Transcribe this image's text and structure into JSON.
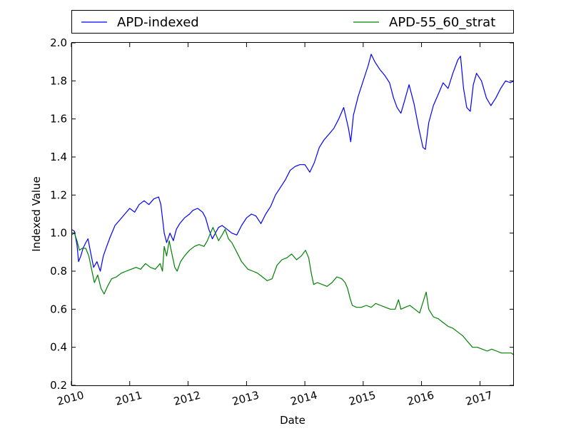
{
  "chart_data": {
    "type": "line",
    "title": "",
    "xlabel": "Date",
    "ylabel": "Indexed Value",
    "x_range": [
      "2010-01-01",
      "2017-08-01"
    ],
    "ylim": [
      0.2,
      2.0
    ],
    "x_ticks": [
      "2010",
      "2011",
      "2012",
      "2013",
      "2014",
      "2015",
      "2016",
      "2017"
    ],
    "y_ticks": [
      "0.2",
      "0.4",
      "0.6",
      "0.8",
      "1.0",
      "1.2",
      "1.4",
      "1.6",
      "1.8",
      "2.0"
    ],
    "grid": false,
    "legend_position": "top",
    "series": [
      {
        "name": "APD-indexed",
        "color": "#0000ff",
        "points": [
          [
            "2010-01-01",
            1.02
          ],
          [
            "2010-01-20",
            1.01
          ],
          [
            "2010-02-05",
            0.94
          ],
          [
            "2010-02-15",
            0.85
          ],
          [
            "2010-03-01",
            0.88
          ],
          [
            "2010-03-15",
            0.92
          ],
          [
            "2010-04-01",
            0.95
          ],
          [
            "2010-04-15",
            0.97
          ],
          [
            "2010-05-01",
            0.9
          ],
          [
            "2010-05-20",
            0.82
          ],
          [
            "2010-06-10",
            0.85
          ],
          [
            "2010-07-01",
            0.8
          ],
          [
            "2010-07-20",
            0.88
          ],
          [
            "2010-08-10",
            0.93
          ],
          [
            "2010-09-01",
            0.98
          ],
          [
            "2010-10-01",
            1.04
          ],
          [
            "2010-11-01",
            1.07
          ],
          [
            "2010-12-01",
            1.1
          ],
          [
            "2011-01-01",
            1.13
          ],
          [
            "2011-02-01",
            1.11
          ],
          [
            "2011-03-01",
            1.15
          ],
          [
            "2011-04-01",
            1.17
          ],
          [
            "2011-05-01",
            1.15
          ],
          [
            "2011-06-01",
            1.18
          ],
          [
            "2011-07-01",
            1.19
          ],
          [
            "2011-07-15",
            1.15
          ],
          [
            "2011-08-05",
            1.0
          ],
          [
            "2011-08-20",
            0.95
          ],
          [
            "2011-09-10",
            1.0
          ],
          [
            "2011-10-01",
            0.96
          ],
          [
            "2011-10-20",
            1.02
          ],
          [
            "2011-11-10",
            1.05
          ],
          [
            "2011-12-10",
            1.08
          ],
          [
            "2012-01-10",
            1.1
          ],
          [
            "2012-02-01",
            1.12
          ],
          [
            "2012-03-01",
            1.13
          ],
          [
            "2012-04-01",
            1.11
          ],
          [
            "2012-04-20",
            1.08
          ],
          [
            "2012-05-10",
            1.02
          ],
          [
            "2012-06-01",
            0.97
          ],
          [
            "2012-06-20",
            1.0
          ],
          [
            "2012-07-10",
            1.03
          ],
          [
            "2012-08-01",
            1.04
          ],
          [
            "2012-09-01",
            1.02
          ],
          [
            "2012-10-01",
            1.0
          ],
          [
            "2012-11-01",
            0.99
          ],
          [
            "2012-12-01",
            1.04
          ],
          [
            "2013-01-01",
            1.08
          ],
          [
            "2013-02-01",
            1.1
          ],
          [
            "2013-03-01",
            1.09
          ],
          [
            "2013-04-01",
            1.05
          ],
          [
            "2013-05-01",
            1.1
          ],
          [
            "2013-06-01",
            1.14
          ],
          [
            "2013-07-01",
            1.2
          ],
          [
            "2013-08-01",
            1.24
          ],
          [
            "2013-09-01",
            1.28
          ],
          [
            "2013-10-01",
            1.33
          ],
          [
            "2013-11-01",
            1.35
          ],
          [
            "2013-12-01",
            1.36
          ],
          [
            "2014-01-01",
            1.36
          ],
          [
            "2014-02-01",
            1.32
          ],
          [
            "2014-03-01",
            1.37
          ],
          [
            "2014-04-01",
            1.45
          ],
          [
            "2014-05-01",
            1.49
          ],
          [
            "2014-06-01",
            1.52
          ],
          [
            "2014-07-01",
            1.55
          ],
          [
            "2014-08-01",
            1.6
          ],
          [
            "2014-09-01",
            1.66
          ],
          [
            "2014-10-01",
            1.55
          ],
          [
            "2014-10-15",
            1.48
          ],
          [
            "2014-11-01",
            1.62
          ],
          [
            "2014-12-01",
            1.72
          ],
          [
            "2015-01-01",
            1.8
          ],
          [
            "2015-02-01",
            1.88
          ],
          [
            "2015-02-20",
            1.94
          ],
          [
            "2015-03-15",
            1.9
          ],
          [
            "2015-04-15",
            1.86
          ],
          [
            "2015-05-15",
            1.83
          ],
          [
            "2015-06-15",
            1.79
          ],
          [
            "2015-07-10",
            1.71
          ],
          [
            "2015-08-01",
            1.66
          ],
          [
            "2015-08-25",
            1.63
          ],
          [
            "2015-09-15",
            1.69
          ],
          [
            "2015-10-15",
            1.78
          ],
          [
            "2015-11-15",
            1.68
          ],
          [
            "2015-12-15",
            1.55
          ],
          [
            "2016-01-10",
            1.45
          ],
          [
            "2016-01-25",
            1.44
          ],
          [
            "2016-02-15",
            1.58
          ],
          [
            "2016-03-15",
            1.67
          ],
          [
            "2016-04-15",
            1.73
          ],
          [
            "2016-05-15",
            1.79
          ],
          [
            "2016-06-15",
            1.76
          ],
          [
            "2016-07-15",
            1.84
          ],
          [
            "2016-08-15",
            1.91
          ],
          [
            "2016-09-01",
            1.93
          ],
          [
            "2016-09-20",
            1.76
          ],
          [
            "2016-10-10",
            1.66
          ],
          [
            "2016-11-01",
            1.64
          ],
          [
            "2016-11-20",
            1.78
          ],
          [
            "2016-12-10",
            1.84
          ],
          [
            "2017-01-10",
            1.8
          ],
          [
            "2017-02-10",
            1.71
          ],
          [
            "2017-03-10",
            1.67
          ],
          [
            "2017-04-10",
            1.71
          ],
          [
            "2017-05-10",
            1.76
          ],
          [
            "2017-06-10",
            1.8
          ],
          [
            "2017-07-10",
            1.79
          ],
          [
            "2017-08-01",
            1.8
          ]
        ]
      },
      {
        "name": "APD-55_60_strat",
        "color": "#008000",
        "points": [
          [
            "2010-01-01",
            0.99
          ],
          [
            "2010-01-20",
            1.0
          ],
          [
            "2010-02-05",
            0.96
          ],
          [
            "2010-02-20",
            0.91
          ],
          [
            "2010-03-10",
            0.92
          ],
          [
            "2010-04-01",
            0.92
          ],
          [
            "2010-04-20",
            0.88
          ],
          [
            "2010-05-10",
            0.8
          ],
          [
            "2010-05-25",
            0.74
          ],
          [
            "2010-06-15",
            0.78
          ],
          [
            "2010-07-05",
            0.71
          ],
          [
            "2010-07-25",
            0.68
          ],
          [
            "2010-08-15",
            0.72
          ],
          [
            "2010-09-10",
            0.76
          ],
          [
            "2010-10-10",
            0.77
          ],
          [
            "2010-11-10",
            0.79
          ],
          [
            "2010-12-10",
            0.8
          ],
          [
            "2011-01-10",
            0.81
          ],
          [
            "2011-02-10",
            0.82
          ],
          [
            "2011-03-10",
            0.81
          ],
          [
            "2011-04-10",
            0.84
          ],
          [
            "2011-05-10",
            0.82
          ],
          [
            "2011-06-10",
            0.81
          ],
          [
            "2011-07-10",
            0.84
          ],
          [
            "2011-07-25",
            0.8
          ],
          [
            "2011-08-05",
            0.93
          ],
          [
            "2011-08-20",
            0.88
          ],
          [
            "2011-09-05",
            0.96
          ],
          [
            "2011-09-20",
            0.9
          ],
          [
            "2011-10-10",
            0.82
          ],
          [
            "2011-10-25",
            0.8
          ],
          [
            "2011-11-15",
            0.85
          ],
          [
            "2011-12-10",
            0.88
          ],
          [
            "2012-01-10",
            0.91
          ],
          [
            "2012-02-10",
            0.93
          ],
          [
            "2012-03-10",
            0.94
          ],
          [
            "2012-04-10",
            0.93
          ],
          [
            "2012-05-01",
            0.96
          ],
          [
            "2012-05-20",
            1.0
          ],
          [
            "2012-06-05",
            1.03
          ],
          [
            "2012-06-20",
            1.0
          ],
          [
            "2012-07-10",
            0.96
          ],
          [
            "2012-08-01",
            0.99
          ],
          [
            "2012-08-20",
            1.02
          ],
          [
            "2012-09-10",
            0.97
          ],
          [
            "2012-10-01",
            0.95
          ],
          [
            "2012-11-01",
            0.9
          ],
          [
            "2012-12-01",
            0.85
          ],
          [
            "2013-01-10",
            0.81
          ],
          [
            "2013-02-10",
            0.8
          ],
          [
            "2013-03-10",
            0.79
          ],
          [
            "2013-04-10",
            0.77
          ],
          [
            "2013-05-10",
            0.75
          ],
          [
            "2013-06-10",
            0.76
          ],
          [
            "2013-07-10",
            0.83
          ],
          [
            "2013-08-10",
            0.86
          ],
          [
            "2013-09-10",
            0.87
          ],
          [
            "2013-10-10",
            0.89
          ],
          [
            "2013-11-10",
            0.86
          ],
          [
            "2013-12-10",
            0.88
          ],
          [
            "2014-01-05",
            0.91
          ],
          [
            "2014-01-25",
            0.87
          ],
          [
            "2014-02-10",
            0.79
          ],
          [
            "2014-02-25",
            0.73
          ],
          [
            "2014-03-20",
            0.74
          ],
          [
            "2014-04-20",
            0.73
          ],
          [
            "2014-05-20",
            0.72
          ],
          [
            "2014-06-20",
            0.74
          ],
          [
            "2014-07-20",
            0.77
          ],
          [
            "2014-08-20",
            0.76
          ],
          [
            "2014-09-10",
            0.74
          ],
          [
            "2014-09-25",
            0.71
          ],
          [
            "2014-10-10",
            0.66
          ],
          [
            "2014-10-25",
            0.62
          ],
          [
            "2014-11-20",
            0.61
          ],
          [
            "2014-12-20",
            0.61
          ],
          [
            "2015-01-20",
            0.62
          ],
          [
            "2015-02-20",
            0.61
          ],
          [
            "2015-03-20",
            0.63
          ],
          [
            "2015-04-20",
            0.62
          ],
          [
            "2015-05-20",
            0.61
          ],
          [
            "2015-06-20",
            0.6
          ],
          [
            "2015-07-20",
            0.6
          ],
          [
            "2015-08-10",
            0.65
          ],
          [
            "2015-08-25",
            0.6
          ],
          [
            "2015-09-20",
            0.61
          ],
          [
            "2015-10-20",
            0.62
          ],
          [
            "2015-11-20",
            0.6
          ],
          [
            "2015-12-20",
            0.58
          ],
          [
            "2016-01-15",
            0.65
          ],
          [
            "2016-01-30",
            0.69
          ],
          [
            "2016-02-15",
            0.6
          ],
          [
            "2016-03-15",
            0.56
          ],
          [
            "2016-04-15",
            0.55
          ],
          [
            "2016-05-15",
            0.53
          ],
          [
            "2016-06-15",
            0.51
          ],
          [
            "2016-07-15",
            0.5
          ],
          [
            "2016-08-15",
            0.48
          ],
          [
            "2016-09-15",
            0.46
          ],
          [
            "2016-10-15",
            0.43
          ],
          [
            "2016-11-15",
            0.4
          ],
          [
            "2016-12-15",
            0.4
          ],
          [
            "2017-01-15",
            0.39
          ],
          [
            "2017-02-15",
            0.38
          ],
          [
            "2017-03-15",
            0.39
          ],
          [
            "2017-04-15",
            0.38
          ],
          [
            "2017-05-15",
            0.37
          ],
          [
            "2017-06-15",
            0.37
          ],
          [
            "2017-07-15",
            0.37
          ],
          [
            "2017-08-01",
            0.36
          ]
        ]
      }
    ]
  }
}
